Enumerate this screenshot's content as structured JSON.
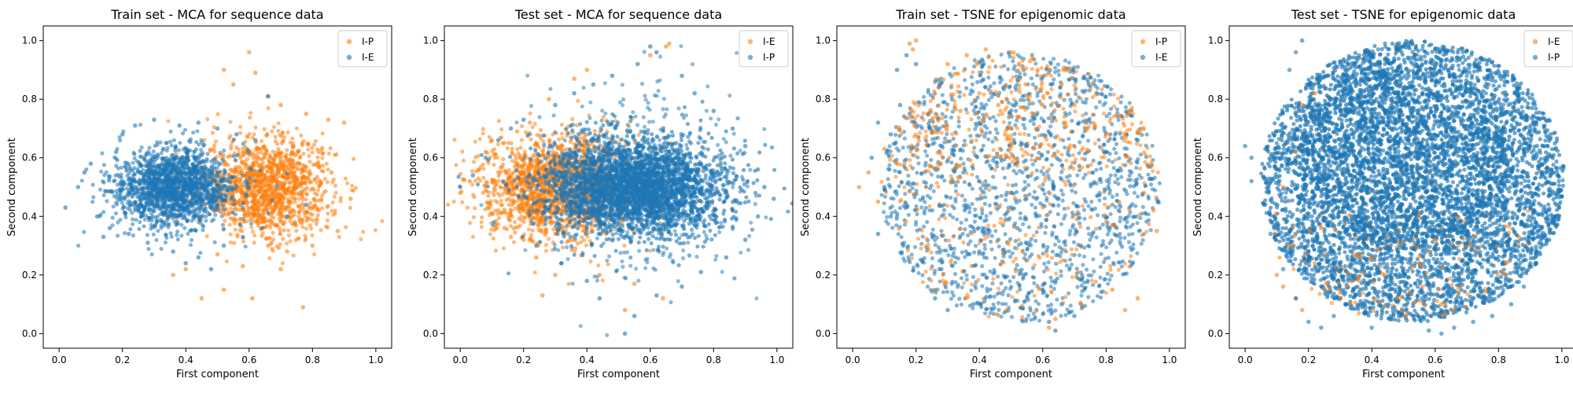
{
  "chart_data": [
    {
      "type": "scatter",
      "title": "Train set - MCA for sequence data",
      "xlabel": "First component",
      "ylabel": "Second component",
      "xlim": [
        -0.05,
        1.05
      ],
      "ylim": [
        -0.05,
        1.05
      ],
      "xticks": [
        "0.0",
        "0.2",
        "0.4",
        "0.6",
        "0.8",
        "1.0"
      ],
      "yticks": [
        "0.0",
        "0.2",
        "0.4",
        "0.6",
        "0.8",
        "1.0"
      ],
      "legend_position": "top-right",
      "series": [
        {
          "name": "I-P",
          "color": "#ff7f0e",
          "points": [
            [
              0.52,
              0.9
            ],
            [
              0.6,
              0.96
            ],
            [
              0.62,
              0.89
            ],
            [
              0.66,
              0.81
            ],
            [
              0.55,
              0.85
            ],
            [
              0.7,
              0.78
            ],
            [
              0.78,
              0.75
            ],
            [
              0.85,
              0.73
            ],
            [
              0.9,
              0.72
            ],
            [
              0.92,
              0.46
            ],
            [
              0.88,
              0.35
            ],
            [
              0.8,
              0.3
            ],
            [
              0.72,
              0.28
            ],
            [
              0.66,
              0.3
            ],
            [
              0.52,
              0.15
            ],
            [
              0.61,
              0.12
            ],
            [
              0.77,
              0.09
            ],
            [
              0.36,
              0.2
            ],
            [
              0.4,
              0.22
            ],
            [
              0.45,
              0.12
            ],
            [
              0.5,
              0.27
            ],
            [
              0.58,
              0.23
            ],
            [
              0.7,
              0.22
            ],
            [
              0.74,
              0.64
            ],
            [
              0.82,
              0.62
            ],
            [
              0.86,
              0.55
            ],
            [
              0.74,
              0.5
            ],
            [
              0.68,
              0.42
            ],
            [
              0.82,
              0.42
            ]
          ]
        },
        {
          "name": "I-E",
          "color": "#1f77b4",
          "points": [
            [
              0.02,
              0.43
            ],
            [
              0.06,
              0.5
            ],
            [
              0.08,
              0.55
            ],
            [
              0.1,
              0.58
            ],
            [
              0.12,
              0.4
            ],
            [
              0.14,
              0.33
            ],
            [
              0.16,
              0.36
            ],
            [
              0.18,
              0.62
            ],
            [
              0.2,
              0.68
            ],
            [
              0.24,
              0.71
            ],
            [
              0.3,
              0.73
            ],
            [
              0.38,
              0.71
            ],
            [
              0.44,
              0.72
            ],
            [
              0.5,
              0.7
            ],
            [
              0.56,
              0.68
            ],
            [
              0.62,
              0.66
            ],
            [
              0.66,
              0.81
            ],
            [
              0.58,
              0.33
            ],
            [
              0.52,
              0.3
            ],
            [
              0.44,
              0.26
            ],
            [
              0.36,
              0.28
            ],
            [
              0.28,
              0.31
            ],
            [
              0.22,
              0.34
            ],
            [
              0.64,
              0.36
            ],
            [
              0.72,
              0.4
            ],
            [
              0.78,
              0.44
            ],
            [
              0.48,
              0.22
            ],
            [
              0.4,
              0.24
            ],
            [
              0.33,
              0.56
            ],
            [
              0.46,
              0.57
            ]
          ]
        }
      ]
    },
    {
      "type": "scatter",
      "title": "Test set - MCA for sequence data",
      "xlabel": "First component",
      "ylabel": "Second component",
      "xlim": [
        -0.05,
        1.05
      ],
      "ylim": [
        -0.05,
        1.05
      ],
      "xticks": [
        "0.0",
        "0.2",
        "0.4",
        "0.6",
        "0.8",
        "1.0"
      ],
      "yticks": [
        "0.0",
        "0.2",
        "0.4",
        "0.6",
        "0.8",
        "1.0"
      ],
      "legend_position": "top-right",
      "series": [
        {
          "name": "I-E",
          "color": "#ff7f0e",
          "points": [
            [
              0.0,
              0.48
            ],
            [
              0.03,
              0.52
            ],
            [
              0.06,
              0.56
            ],
            [
              0.08,
              0.62
            ],
            [
              0.1,
              0.66
            ],
            [
              0.12,
              0.42
            ],
            [
              0.14,
              0.36
            ],
            [
              0.16,
              0.33
            ],
            [
              0.18,
              0.69
            ],
            [
              0.22,
              0.72
            ],
            [
              0.28,
              0.8
            ],
            [
              0.36,
              0.87
            ],
            [
              0.4,
              0.9
            ],
            [
              0.6,
              0.95
            ],
            [
              0.65,
              0.98
            ],
            [
              0.66,
              0.99
            ],
            [
              0.2,
              0.32
            ],
            [
              0.24,
              0.26
            ],
            [
              0.3,
              0.2
            ],
            [
              0.26,
              0.13
            ],
            [
              0.44,
              0.2
            ],
            [
              0.52,
              0.08
            ],
            [
              0.64,
              0.12
            ],
            [
              0.55,
              0.17
            ]
          ]
        },
        {
          "name": "I-P",
          "color": "#1f77b4",
          "points": [
            [
              0.0,
              0.5
            ],
            [
              0.04,
              0.54
            ],
            [
              0.08,
              0.6
            ],
            [
              0.12,
              0.66
            ],
            [
              0.16,
              0.7
            ],
            [
              0.2,
              0.73
            ],
            [
              0.3,
              0.78
            ],
            [
              0.36,
              0.82
            ],
            [
              0.42,
              0.85
            ],
            [
              0.48,
              0.88
            ],
            [
              0.56,
              0.92
            ],
            [
              0.6,
              0.98
            ],
            [
              0.62,
              0.96
            ],
            [
              0.7,
              0.88
            ],
            [
              0.74,
              0.82
            ],
            [
              0.8,
              0.76
            ],
            [
              0.86,
              0.7
            ],
            [
              0.9,
              0.64
            ],
            [
              0.94,
              0.56
            ],
            [
              0.96,
              0.5
            ],
            [
              0.99,
              0.46
            ],
            [
              0.94,
              0.4
            ],
            [
              0.9,
              0.32
            ],
            [
              0.84,
              0.26
            ],
            [
              0.76,
              0.21
            ],
            [
              0.7,
              0.16
            ],
            [
              0.62,
              0.13
            ],
            [
              0.55,
              0.06
            ],
            [
              0.52,
              0.0
            ],
            [
              0.44,
              0.12
            ],
            [
              0.4,
              0.18
            ],
            [
              0.32,
              0.24
            ],
            [
              0.24,
              0.3
            ]
          ]
        }
      ]
    },
    {
      "type": "scatter",
      "title": "Train set - TSNE for epigenomic data",
      "xlabel": "First component",
      "ylabel": "Second component",
      "xlim": [
        -0.05,
        1.05
      ],
      "ylim": [
        -0.05,
        1.05
      ],
      "xticks": [
        "0.0",
        "0.2",
        "0.4",
        "0.6",
        "0.8",
        "1.0"
      ],
      "yticks": [
        "0.0",
        "0.2",
        "0.4",
        "0.6",
        "0.8",
        "1.0"
      ],
      "legend_position": "top-right",
      "series": [
        {
          "name": "I-P",
          "color": "#ff7f0e",
          "points": [
            [
              0.18,
              0.99
            ],
            [
              0.2,
              1.0
            ],
            [
              0.19,
              0.97
            ],
            [
              0.3,
              0.92
            ],
            [
              0.36,
              0.95
            ],
            [
              0.42,
              0.97
            ],
            [
              0.5,
              0.96
            ],
            [
              0.56,
              0.93
            ],
            [
              0.62,
              0.9
            ],
            [
              0.66,
              0.85
            ],
            [
              0.7,
              0.78
            ],
            [
              0.74,
              0.7
            ],
            [
              0.4,
              0.82
            ],
            [
              0.46,
              0.78
            ],
            [
              0.52,
              0.74
            ],
            [
              0.58,
              0.7
            ],
            [
              0.34,
              0.76
            ],
            [
              0.92,
              0.48
            ],
            [
              0.95,
              0.42
            ],
            [
              0.96,
              0.35
            ],
            [
              0.9,
              0.12
            ],
            [
              0.86,
              0.08
            ],
            [
              0.82,
              0.15
            ],
            [
              0.62,
              0.02
            ],
            [
              0.64,
              0.05
            ],
            [
              0.05,
              0.55
            ],
            [
              0.02,
              0.5
            ],
            [
              0.08,
              0.45
            ],
            [
              0.1,
              0.63
            ],
            [
              0.14,
              0.58
            ]
          ]
        },
        {
          "name": "I-E",
          "color": "#1f77b4",
          "points": [
            [
              0.14,
              0.9
            ],
            [
              0.17,
              0.95
            ],
            [
              0.2,
              0.92
            ],
            [
              0.15,
              0.78
            ],
            [
              0.18,
              0.75
            ],
            [
              0.08,
              0.72
            ],
            [
              0.12,
              0.68
            ],
            [
              0.06,
              0.6
            ],
            [
              0.1,
              0.5
            ],
            [
              0.12,
              0.4
            ],
            [
              0.08,
              0.34
            ],
            [
              0.16,
              0.3
            ],
            [
              0.22,
              0.25
            ],
            [
              0.28,
              0.22
            ],
            [
              0.26,
              0.12
            ],
            [
              0.3,
              0.08
            ],
            [
              0.38,
              0.1
            ],
            [
              0.4,
              0.28
            ],
            [
              0.46,
              0.32
            ],
            [
              0.52,
              0.36
            ],
            [
              0.58,
              0.4
            ],
            [
              0.64,
              0.18
            ],
            [
              0.66,
              0.1
            ],
            [
              0.7,
              0.06
            ],
            [
              0.62,
              0.04
            ],
            [
              0.64,
              0.01
            ],
            [
              0.72,
              0.3
            ],
            [
              0.78,
              0.36
            ],
            [
              0.84,
              0.42
            ],
            [
              0.88,
              0.55
            ],
            [
              0.9,
              0.66
            ],
            [
              0.8,
              0.62
            ]
          ]
        }
      ]
    },
    {
      "type": "scatter",
      "title": "Test set - TSNE for epigenomic data",
      "xlabel": "First component",
      "ylabel": "Second component",
      "xlim": [
        -0.05,
        1.05
      ],
      "ylim": [
        -0.05,
        1.05
      ],
      "xticks": [
        "0.0",
        "0.2",
        "0.4",
        "0.6",
        "0.8",
        "1.0"
      ],
      "yticks": [
        "0.0",
        "0.2",
        "0.4",
        "0.6",
        "0.8",
        "1.0"
      ],
      "legend_position": "top-right",
      "series": [
        {
          "name": "I-E",
          "color": "#ff7f0e",
          "points": [
            [
              0.1,
              0.2
            ],
            [
              0.12,
              0.16
            ],
            [
              0.14,
              0.3
            ],
            [
              0.16,
              0.12
            ],
            [
              0.18,
              0.08
            ],
            [
              0.22,
              0.24
            ],
            [
              0.24,
              0.36
            ],
            [
              0.3,
              0.14
            ],
            [
              0.36,
              0.18
            ],
            [
              0.4,
              0.26
            ],
            [
              0.44,
              0.2
            ],
            [
              0.48,
              0.12
            ],
            [
              0.52,
              0.14
            ],
            [
              0.55,
              0.24
            ],
            [
              0.56,
              0.16
            ],
            [
              0.58,
              0.28
            ],
            [
              0.62,
              0.1
            ],
            [
              0.66,
              0.08
            ],
            [
              0.6,
              0.32
            ],
            [
              0.18,
              0.78
            ],
            [
              0.22,
              0.82
            ],
            [
              0.16,
              0.62
            ],
            [
              0.12,
              0.5
            ]
          ]
        },
        {
          "name": "I-P",
          "color": "#1f77b4",
          "points": [
            [
              0.18,
              1.0
            ],
            [
              0.16,
              0.96
            ],
            [
              0.14,
              0.9
            ],
            [
              0.2,
              0.85
            ],
            [
              0.26,
              0.88
            ],
            [
              0.3,
              0.92
            ],
            [
              0.36,
              0.95
            ],
            [
              0.42,
              0.97
            ],
            [
              0.5,
              0.98
            ],
            [
              0.56,
              0.97
            ],
            [
              0.62,
              0.93
            ],
            [
              0.7,
              0.88
            ],
            [
              0.76,
              0.82
            ],
            [
              0.84,
              0.75
            ],
            [
              0.9,
              0.7
            ],
            [
              0.94,
              0.64
            ],
            [
              0.96,
              0.56
            ],
            [
              0.98,
              0.48
            ],
            [
              0.98,
              0.4
            ],
            [
              0.96,
              0.32
            ],
            [
              0.92,
              0.24
            ],
            [
              0.88,
              0.16
            ],
            [
              0.84,
              0.1
            ],
            [
              0.78,
              0.06
            ],
            [
              0.72,
              0.04
            ],
            [
              0.66,
              0.02
            ],
            [
              0.62,
              0.0
            ],
            [
              0.58,
              0.01
            ],
            [
              0.02,
              0.6
            ],
            [
              0.0,
              0.64
            ],
            [
              0.02,
              0.52
            ],
            [
              0.06,
              0.44
            ],
            [
              0.08,
              0.34
            ],
            [
              0.12,
              0.22
            ],
            [
              0.16,
              0.12
            ],
            [
              0.2,
              0.04
            ],
            [
              0.24,
              0.02
            ],
            [
              0.28,
              0.06
            ],
            [
              0.32,
              0.1
            ],
            [
              0.46,
              0.06
            ],
            [
              0.4,
              0.02
            ]
          ]
        }
      ]
    }
  ]
}
